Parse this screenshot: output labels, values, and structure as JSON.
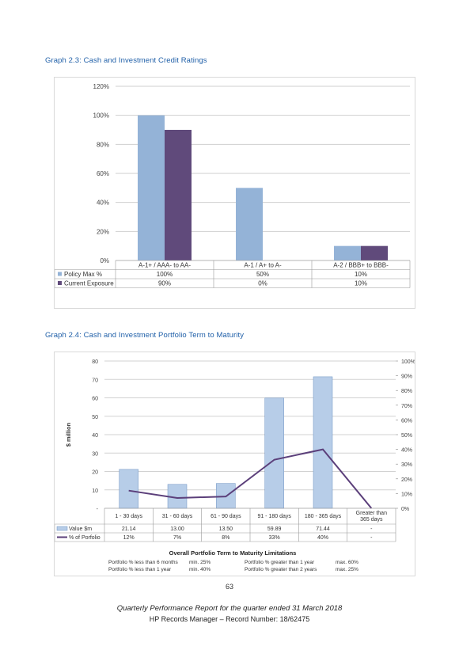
{
  "graph1": {
    "title": "Graph 2.3:  Cash and Investment Credit Ratings",
    "chart_data": {
      "type": "bar",
      "categories": [
        "A-1+ / AAA- to AA-",
        "A-1 / A+ to A-",
        "A-2 / BBB+ to BBB-"
      ],
      "series": [
        {
          "name": "Policy Max %",
          "values": [
            100,
            50,
            10
          ],
          "labels": [
            "100%",
            "50%",
            "10%"
          ],
          "color": "#94b3d7"
        },
        {
          "name": "Current Exposure",
          "values": [
            90,
            0,
            10
          ],
          "labels": [
            "90%",
            "0%",
            "10%"
          ],
          "color": "#604a7b"
        }
      ],
      "ylim": [
        0,
        120
      ],
      "yticks": [
        "0%",
        "20%",
        "40%",
        "60%",
        "80%",
        "100%",
        "120%"
      ],
      "grid": true,
      "legend": "data table"
    }
  },
  "graph2": {
    "title": "Graph 2.4:  Cash and Investment Portfolio Term to Maturity",
    "chart_data": {
      "type": "bar",
      "categories": [
        "1 - 30 days",
        "31 - 60 days",
        "61 - 90 days",
        "91 - 180 days",
        "180 - 365 days",
        "Greater than 365 days"
      ],
      "series": [
        {
          "name": "Value $m",
          "type": "bar",
          "values": [
            21.14,
            13.0,
            13.5,
            59.89,
            71.44,
            null
          ],
          "labels": [
            "21.14",
            "13.00",
            "13.50",
            "59.89",
            "71.44",
            "-"
          ],
          "color": "#b7cde8",
          "axis": "left"
        },
        {
          "name": "% of Porfolio",
          "type": "line",
          "values": [
            12,
            7,
            8,
            33,
            40,
            0
          ],
          "labels": [
            "12%",
            "7%",
            "8%",
            "33%",
            "40%",
            "-"
          ],
          "color": "#5b3f7a",
          "axis": "right"
        }
      ],
      "ylabel": "$ million",
      "ylim": [
        0,
        80
      ],
      "yticks": [
        "-",
        "10",
        "20",
        "30",
        "40",
        "50",
        "60",
        "70",
        "80"
      ],
      "y2lim": [
        0,
        100
      ],
      "y2ticks": [
        "0%",
        "10%",
        "20%",
        "30%",
        "40%",
        "50%",
        "60%",
        "70%",
        "80%",
        "90%",
        "100%"
      ],
      "grid": true,
      "legend": "data table"
    },
    "limitations": {
      "heading": "Overall Portfolio Term to Maturity Limitations",
      "rows": [
        [
          "Portfolio % less than 6 months",
          "min. 25%",
          "Portfolio % greater than 1 year",
          "max. 60%"
        ],
        [
          "Portfolio % less than 1 year",
          "min. 40%",
          "Portfolio % greater than 2 years",
          "max. 25%"
        ]
      ]
    }
  },
  "page_number": "63",
  "footer": {
    "line1": "Quarterly Performance Report for the quarter ended 31 March 2018",
    "line2": "HP Records Manager – Record Number: 18/62475"
  }
}
